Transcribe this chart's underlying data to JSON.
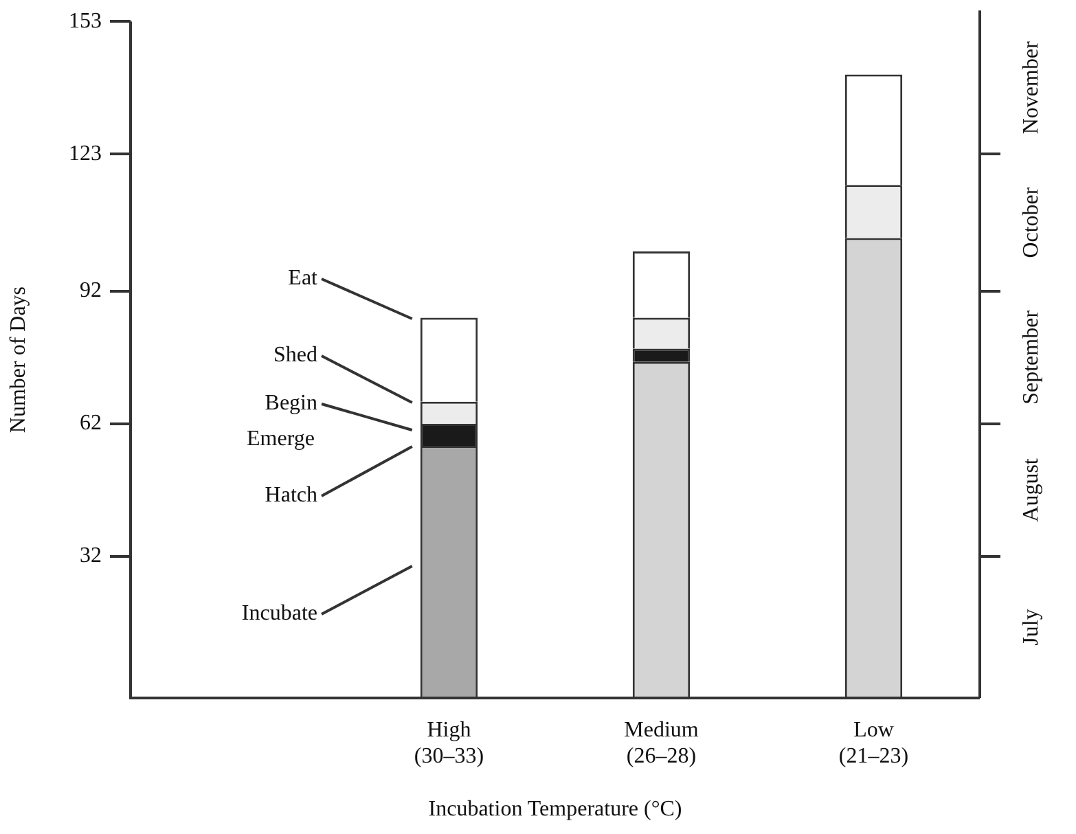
{
  "chart_data": {
    "type": "bar",
    "stacked": true,
    "xlabel": "Incubation Temperature (°C)",
    "ylabel": "Number of Days",
    "categories": [
      null,
      "High\n(30–33)",
      "Medium\n(26–28)",
      "Low\n(21–23)"
    ],
    "series": [
      {
        "colors": [
          "#a8a8a8",
          "#a8a8a8",
          "#d4d4d4",
          "#d4d4d4"
        ],
        "values": [
          null,
          57,
          76,
          104
        ]
      },
      {
        "color": "#1a1a1a",
        "values": [
          null,
          5,
          3,
          null
        ]
      },
      {
        "color": "#ececec",
        "values": [
          null,
          5,
          7,
          12
        ]
      },
      {
        "color": "#ffffff",
        "values": [
          null,
          19,
          15,
          25
        ]
      }
    ],
    "ylim": [
      0,
      153
    ],
    "yticks": [
      32,
      62,
      92,
      123,
      153
    ],
    "annotations": [
      "Eat",
      "Shed",
      "Begin\nEmerge",
      "Hatch",
      "Incubate",
      "July",
      "August",
      "September",
      "October",
      "November"
    ]
  }
}
